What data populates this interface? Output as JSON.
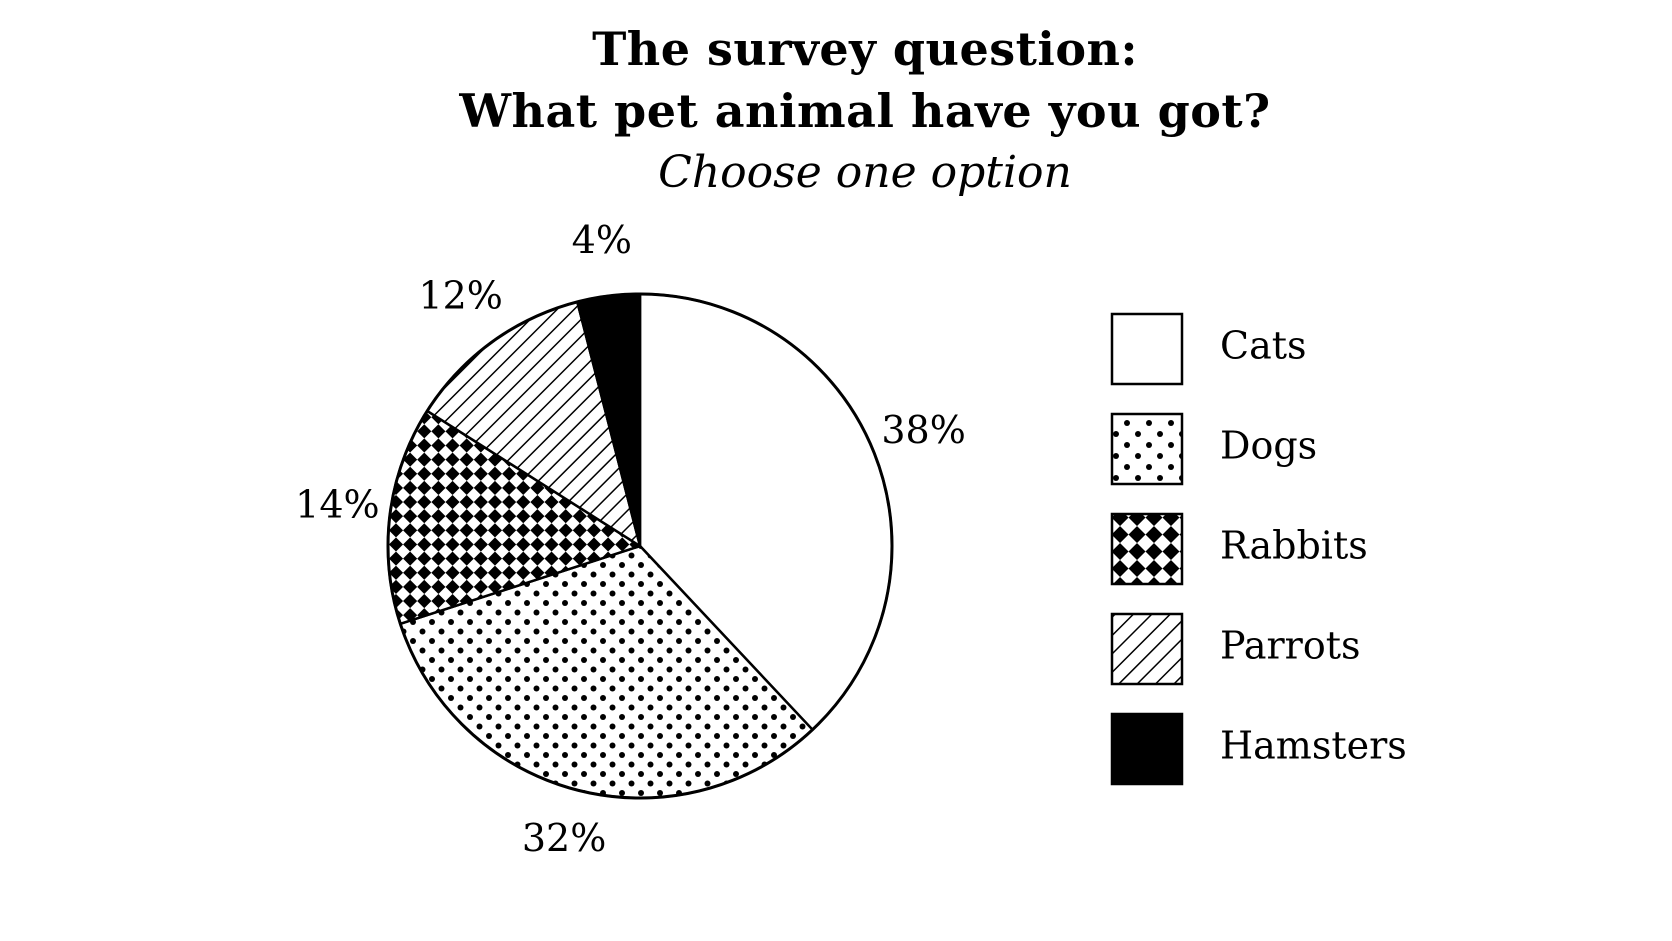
{
  "chart_data": {
    "type": "pie",
    "title": "The survey question:",
    "title_line2": "What pet animal have you got?",
    "subtitle": "Choose one option",
    "categories": [
      "Cats",
      "Dogs",
      "Rabbits",
      "Parrots",
      "Hamsters"
    ],
    "values": [
      38,
      32,
      14,
      12,
      4
    ],
    "labels": [
      "38%",
      "32%",
      "14%",
      "12%",
      "4%"
    ],
    "patterns": [
      "none",
      "dots",
      "checker",
      "diagonal",
      "solid"
    ],
    "colors": {
      "stroke": "#000000",
      "fill": "#ffffff",
      "ink": "#000000"
    },
    "start_angle": "12 o'clock",
    "direction": "clockwise",
    "legend_placement": "right"
  }
}
